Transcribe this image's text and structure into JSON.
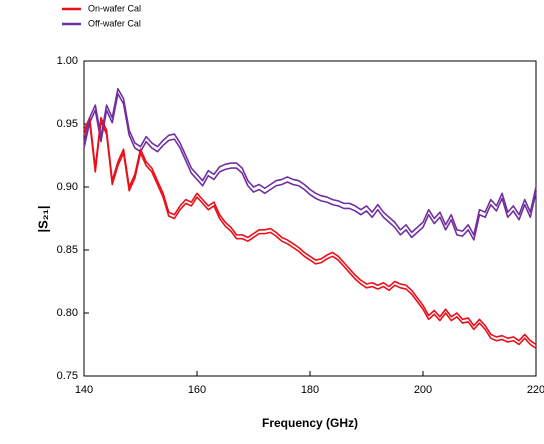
{
  "chart_data": {
    "type": "line",
    "x_label": "Frequency (GHz)",
    "y_label": "|S₂₁|",
    "x": [
      140,
      141,
      142,
      143,
      144,
      145,
      146,
      147,
      148,
      149,
      150,
      151,
      152,
      153,
      154,
      155,
      156,
      157,
      158,
      159,
      160,
      161,
      162,
      163,
      164,
      165,
      166,
      167,
      168,
      169,
      170,
      171,
      172,
      173,
      174,
      175,
      176,
      177,
      178,
      179,
      180,
      181,
      182,
      183,
      184,
      185,
      186,
      187,
      188,
      189,
      190,
      191,
      192,
      193,
      194,
      195,
      196,
      197,
      198,
      199,
      200,
      201,
      202,
      203,
      204,
      205,
      206,
      207,
      208,
      209,
      210,
      211,
      212,
      213,
      214,
      215,
      216,
      217,
      218,
      219,
      220
    ],
    "series": [
      {
        "name": "On-wafer Cal",
        "color": "#e8101a",
        "values": [
          0.945,
          0.955,
          0.915,
          0.955,
          0.945,
          0.905,
          0.92,
          0.93,
          0.9,
          0.91,
          0.93,
          0.92,
          0.915,
          0.905,
          0.895,
          0.88,
          0.878,
          0.885,
          0.89,
          0.888,
          0.895,
          0.89,
          0.885,
          0.888,
          0.878,
          0.872,
          0.868,
          0.862,
          0.862,
          0.86,
          0.863,
          0.866,
          0.866,
          0.867,
          0.864,
          0.86,
          0.858,
          0.855,
          0.852,
          0.848,
          0.845,
          0.842,
          0.843,
          0.846,
          0.848,
          0.845,
          0.84,
          0.835,
          0.83,
          0.826,
          0.823,
          0.824,
          0.822,
          0.824,
          0.821,
          0.825,
          0.823,
          0.822,
          0.818,
          0.812,
          0.806,
          0.798,
          0.802,
          0.797,
          0.803,
          0.797,
          0.8,
          0.795,
          0.796,
          0.79,
          0.795,
          0.79,
          0.783,
          0.781,
          0.782,
          0.78,
          0.781,
          0.778,
          0.783,
          0.778,
          0.775
        ]
      },
      {
        "name": "Off-wafer Cal",
        "color": "#7030a0",
        "values": [
          0.935,
          0.955,
          0.965,
          0.94,
          0.965,
          0.955,
          0.978,
          0.97,
          0.945,
          0.935,
          0.932,
          0.94,
          0.935,
          0.932,
          0.937,
          0.941,
          0.942,
          0.935,
          0.925,
          0.915,
          0.91,
          0.905,
          0.913,
          0.91,
          0.916,
          0.918,
          0.919,
          0.919,
          0.915,
          0.905,
          0.9,
          0.902,
          0.899,
          0.902,
          0.905,
          0.906,
          0.908,
          0.906,
          0.905,
          0.902,
          0.898,
          0.895,
          0.893,
          0.892,
          0.89,
          0.889,
          0.887,
          0.887,
          0.885,
          0.882,
          0.885,
          0.88,
          0.886,
          0.88,
          0.876,
          0.872,
          0.866,
          0.87,
          0.864,
          0.868,
          0.872,
          0.882,
          0.875,
          0.88,
          0.87,
          0.878,
          0.866,
          0.865,
          0.87,
          0.862,
          0.882,
          0.88,
          0.89,
          0.885,
          0.895,
          0.88,
          0.885,
          0.878,
          0.89,
          0.88,
          0.9
        ]
      },
      {
        "color": "#e8101a",
        "values": [
          0.942,
          0.952,
          0.912,
          0.952,
          0.942,
          0.902,
          0.917,
          0.927,
          0.897,
          0.907,
          0.927,
          0.917,
          0.912,
          0.902,
          0.892,
          0.877,
          0.875,
          0.882,
          0.887,
          0.885,
          0.892,
          0.887,
          0.882,
          0.885,
          0.875,
          0.869,
          0.865,
          0.859,
          0.859,
          0.857,
          0.86,
          0.863,
          0.863,
          0.864,
          0.861,
          0.857,
          0.855,
          0.852,
          0.849,
          0.845,
          0.842,
          0.839,
          0.84,
          0.843,
          0.845,
          0.842,
          0.837,
          0.832,
          0.827,
          0.823,
          0.82,
          0.821,
          0.819,
          0.821,
          0.818,
          0.822,
          0.82,
          0.819,
          0.815,
          0.809,
          0.803,
          0.795,
          0.799,
          0.794,
          0.8,
          0.794,
          0.797,
          0.792,
          0.793,
          0.787,
          0.792,
          0.787,
          0.78,
          0.778,
          0.779,
          0.777,
          0.778,
          0.775,
          0.78,
          0.775,
          0.772
        ]
      },
      {
        "color": "#7030a0",
        "values": [
          0.931,
          0.951,
          0.961,
          0.936,
          0.961,
          0.951,
          0.974,
          0.966,
          0.941,
          0.931,
          0.928,
          0.936,
          0.931,
          0.928,
          0.933,
          0.937,
          0.938,
          0.931,
          0.921,
          0.911,
          0.906,
          0.901,
          0.909,
          0.906,
          0.912,
          0.914,
          0.915,
          0.915,
          0.911,
          0.901,
          0.896,
          0.898,
          0.895,
          0.898,
          0.901,
          0.902,
          0.904,
          0.902,
          0.901,
          0.898,
          0.894,
          0.891,
          0.889,
          0.888,
          0.886,
          0.885,
          0.883,
          0.883,
          0.881,
          0.878,
          0.881,
          0.876,
          0.882,
          0.876,
          0.872,
          0.868,
          0.862,
          0.866,
          0.86,
          0.864,
          0.868,
          0.878,
          0.871,
          0.876,
          0.866,
          0.874,
          0.862,
          0.861,
          0.866,
          0.858,
          0.878,
          0.876,
          0.886,
          0.881,
          0.891,
          0.876,
          0.881,
          0.874,
          0.886,
          0.876,
          0.896
        ]
      }
    ],
    "xlim": [
      140,
      220
    ],
    "xticks": [
      140,
      160,
      180,
      200,
      220
    ],
    "ylim": [
      0.75,
      1
    ],
    "yticks": [
      0.75,
      {
        "value": 0.8,
        "label": "0.80"
      },
      0.85,
      {
        "value": 0.9,
        "label": "0.90"
      },
      0.95,
      {
        "value": 1,
        "label": "1.00"
      }
    ],
    "grid": false,
    "legend": "top-left"
  }
}
